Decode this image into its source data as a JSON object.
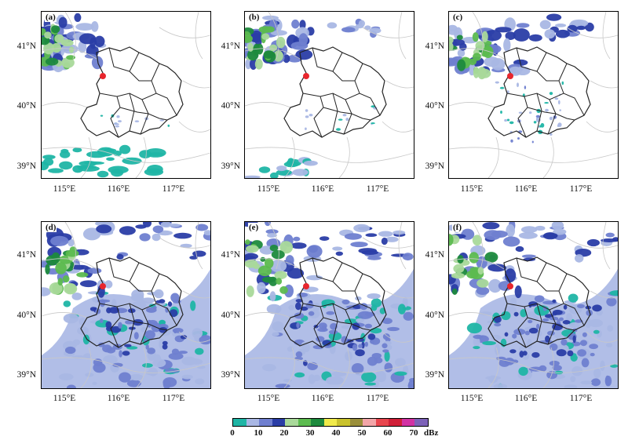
{
  "panels": [
    {
      "label": "(a)"
    },
    {
      "label": "(b)"
    },
    {
      "label": "(c)"
    },
    {
      "label": "(d)"
    },
    {
      "label": "(e)"
    },
    {
      "label": "(f)"
    }
  ],
  "axes": {
    "lat_labels": [
      "41°N",
      "40°N",
      "39°N"
    ],
    "lon_labels": [
      "115°E",
      "116°E",
      "117°E"
    ]
  },
  "colorbar": {
    "tick_labels": [
      "0",
      "10",
      "20",
      "30",
      "40",
      "50",
      "60",
      "70"
    ],
    "unit": "dBz",
    "colors": [
      "#1fb5a5",
      "#a9b7e4",
      "#6f7fd0",
      "#2a3da6",
      "#a9d99a",
      "#5cbb4f",
      "#1d8a3d",
      "#f0ea4a",
      "#c9c22c",
      "#9a8f3a",
      "#f2a5a8",
      "#e8464e",
      "#d01f38",
      "#d232a4",
      "#7d62b8"
    ]
  },
  "marker": {
    "color": "#e8262d"
  }
}
